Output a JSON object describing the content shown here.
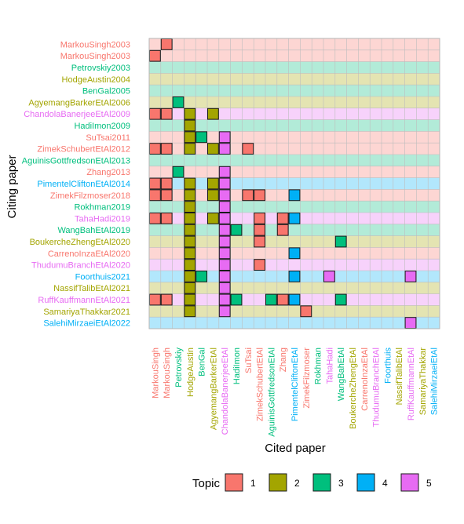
{
  "chart_data": {
    "type": "heatmap",
    "xlabel": "Cited paper",
    "ylabel": "Citing paper",
    "legend": {
      "title": "Topic",
      "position": "bottom",
      "labels": [
        "1",
        "2",
        "3",
        "4",
        "5"
      ]
    },
    "topic_colors": {
      "1": "#F8766D",
      "2": "#A3A500",
      "3": "#00BF7D",
      "4": "#00B0F6",
      "5": "#E76BF3"
    },
    "topic_bg_colors": {
      "1": "#FDD6D3",
      "2": "#E4E4B2",
      "3": "#B2EBD8",
      "4": "#B2E7FC",
      "5": "#F7D2FB"
    },
    "rows": [
      {
        "label": "MarkouSingh2003",
        "topic": 1
      },
      {
        "label": "MarkouSingh2003",
        "topic": 1
      },
      {
        "label": "Petrovskiy2003",
        "topic": 3
      },
      {
        "label": "HodgeAustin2004",
        "topic": 2
      },
      {
        "label": "BenGal2005",
        "topic": 3
      },
      {
        "label": "AgyemangBarkerEtAl2006",
        "topic": 2
      },
      {
        "label": "ChandolaBanerjeeEtAl2009",
        "topic": 5
      },
      {
        "label": "HadiImon2009",
        "topic": 3
      },
      {
        "label": "SuTsai2011",
        "topic": 1
      },
      {
        "label": "ZimekSchubertEtAl2012",
        "topic": 1
      },
      {
        "label": "AguinisGottfredsonEtAl2013",
        "topic": 3
      },
      {
        "label": "Zhang2013",
        "topic": 1
      },
      {
        "label": "PimentelCliftonEtAl2014",
        "topic": 4
      },
      {
        "label": "ZimekFilzmoser2018",
        "topic": 1
      },
      {
        "label": "Rokhman2019",
        "topic": 3
      },
      {
        "label": "TahaHadi2019",
        "topic": 5
      },
      {
        "label": "WangBahEtAl2019",
        "topic": 3
      },
      {
        "label": "BoukercheZhengEtAl2020",
        "topic": 2
      },
      {
        "label": "CarrenoInzaEtAl2020",
        "topic": 1
      },
      {
        "label": "ThudumuBranchEtAl2020",
        "topic": 5
      },
      {
        "label": "Foorthuis2021",
        "topic": 4
      },
      {
        "label": "NassifTalibEtAl2021",
        "topic": 2
      },
      {
        "label": "RuffKauffmannEtAl2021",
        "topic": 5
      },
      {
        "label": "SamariyaThakkar2021",
        "topic": 2
      },
      {
        "label": "SalehiMirzaeiEtAl2022",
        "topic": 4
      }
    ],
    "columns": [
      {
        "label": "MarkouSingh",
        "topic": 1
      },
      {
        "label": "MarkouSingh",
        "topic": 1
      },
      {
        "label": "Petrovskiy",
        "topic": 3
      },
      {
        "label": "HodgeAustin",
        "topic": 2
      },
      {
        "label": "BenGal",
        "topic": 3
      },
      {
        "label": "AgyemangBarkerEtAl",
        "topic": 2
      },
      {
        "label": "ChandolaBanerjeeEtAl",
        "topic": 5
      },
      {
        "label": "HadiImon",
        "topic": 3
      },
      {
        "label": "SuTsai",
        "topic": 1
      },
      {
        "label": "ZimekSchubertEtAl",
        "topic": 1
      },
      {
        "label": "AguinisGottfredsonEtAl",
        "topic": 3
      },
      {
        "label": "Zhang",
        "topic": 1
      },
      {
        "label": "PimentelCliftonEtAl",
        "topic": 4
      },
      {
        "label": "ZimekFilzmoser",
        "topic": 1
      },
      {
        "label": "Rokhman",
        "topic": 3
      },
      {
        "label": "TahaHadi",
        "topic": 5
      },
      {
        "label": "WangBahEtAl",
        "topic": 3
      },
      {
        "label": "BoukercheZhengEtAl",
        "topic": 2
      },
      {
        "label": "CarrenoInzaEtAl",
        "topic": 1
      },
      {
        "label": "ThudumuBranchEtAl",
        "topic": 5
      },
      {
        "label": "Foorthuis",
        "topic": 4
      },
      {
        "label": "NassifTalibEtAl",
        "topic": 2
      },
      {
        "label": "RuffKauffmannEtAl",
        "topic": 5
      },
      {
        "label": "SamariyaThakkar",
        "topic": 2
      },
      {
        "label": "SalehiMirzaeiEtAl",
        "topic": 4
      }
    ],
    "citations": [
      {
        "row": 0,
        "col": 1,
        "topic": 1
      },
      {
        "row": 1,
        "col": 0,
        "topic": 1
      },
      {
        "row": 5,
        "col": 2,
        "topic": 3
      },
      {
        "row": 6,
        "col": 0,
        "topic": 1
      },
      {
        "row": 6,
        "col": 1,
        "topic": 1
      },
      {
        "row": 6,
        "col": 3,
        "topic": 2
      },
      {
        "row": 6,
        "col": 5,
        "topic": 2
      },
      {
        "row": 7,
        "col": 3,
        "topic": 2
      },
      {
        "row": 8,
        "col": 3,
        "topic": 2
      },
      {
        "row": 8,
        "col": 4,
        "topic": 3
      },
      {
        "row": 8,
        "col": 6,
        "topic": 5
      },
      {
        "row": 9,
        "col": 0,
        "topic": 1
      },
      {
        "row": 9,
        "col": 1,
        "topic": 1
      },
      {
        "row": 9,
        "col": 3,
        "topic": 2
      },
      {
        "row": 9,
        "col": 5,
        "topic": 2
      },
      {
        "row": 9,
        "col": 6,
        "topic": 5
      },
      {
        "row": 9,
        "col": 8,
        "topic": 1
      },
      {
        "row": 11,
        "col": 2,
        "topic": 3
      },
      {
        "row": 11,
        "col": 6,
        "topic": 5
      },
      {
        "row": 12,
        "col": 0,
        "topic": 1
      },
      {
        "row": 12,
        "col": 1,
        "topic": 1
      },
      {
        "row": 12,
        "col": 3,
        "topic": 2
      },
      {
        "row": 12,
        "col": 5,
        "topic": 2
      },
      {
        "row": 12,
        "col": 6,
        "topic": 5
      },
      {
        "row": 13,
        "col": 0,
        "topic": 1
      },
      {
        "row": 13,
        "col": 1,
        "topic": 1
      },
      {
        "row": 13,
        "col": 3,
        "topic": 2
      },
      {
        "row": 13,
        "col": 5,
        "topic": 2
      },
      {
        "row": 13,
        "col": 6,
        "topic": 5
      },
      {
        "row": 13,
        "col": 8,
        "topic": 1
      },
      {
        "row": 13,
        "col": 9,
        "topic": 1
      },
      {
        "row": 13,
        "col": 12,
        "topic": 4
      },
      {
        "row": 14,
        "col": 3,
        "topic": 2
      },
      {
        "row": 14,
        "col": 6,
        "topic": 5
      },
      {
        "row": 15,
        "col": 0,
        "topic": 1
      },
      {
        "row": 15,
        "col": 1,
        "topic": 1
      },
      {
        "row": 15,
        "col": 3,
        "topic": 2
      },
      {
        "row": 15,
        "col": 5,
        "topic": 2
      },
      {
        "row": 15,
        "col": 6,
        "topic": 5
      },
      {
        "row": 15,
        "col": 9,
        "topic": 1
      },
      {
        "row": 15,
        "col": 11,
        "topic": 1
      },
      {
        "row": 15,
        "col": 12,
        "topic": 4
      },
      {
        "row": 16,
        "col": 3,
        "topic": 2
      },
      {
        "row": 16,
        "col": 6,
        "topic": 5
      },
      {
        "row": 16,
        "col": 7,
        "topic": 3
      },
      {
        "row": 16,
        "col": 9,
        "topic": 1
      },
      {
        "row": 16,
        "col": 11,
        "topic": 1
      },
      {
        "row": 17,
        "col": 3,
        "topic": 2
      },
      {
        "row": 17,
        "col": 6,
        "topic": 5
      },
      {
        "row": 17,
        "col": 9,
        "topic": 1
      },
      {
        "row": 17,
        "col": 16,
        "topic": 3
      },
      {
        "row": 18,
        "col": 3,
        "topic": 2
      },
      {
        "row": 18,
        "col": 6,
        "topic": 5
      },
      {
        "row": 18,
        "col": 12,
        "topic": 4
      },
      {
        "row": 19,
        "col": 3,
        "topic": 2
      },
      {
        "row": 19,
        "col": 6,
        "topic": 5
      },
      {
        "row": 19,
        "col": 9,
        "topic": 1
      },
      {
        "row": 20,
        "col": 3,
        "topic": 2
      },
      {
        "row": 20,
        "col": 4,
        "topic": 3
      },
      {
        "row": 20,
        "col": 6,
        "topic": 5
      },
      {
        "row": 20,
        "col": 12,
        "topic": 4
      },
      {
        "row": 20,
        "col": 15,
        "topic": 5
      },
      {
        "row": 20,
        "col": 22,
        "topic": 5
      },
      {
        "row": 21,
        "col": 3,
        "topic": 2
      },
      {
        "row": 21,
        "col": 6,
        "topic": 5
      },
      {
        "row": 22,
        "col": 0,
        "topic": 1
      },
      {
        "row": 22,
        "col": 1,
        "topic": 1
      },
      {
        "row": 22,
        "col": 3,
        "topic": 2
      },
      {
        "row": 22,
        "col": 6,
        "topic": 5
      },
      {
        "row": 22,
        "col": 7,
        "topic": 3
      },
      {
        "row": 22,
        "col": 10,
        "topic": 3
      },
      {
        "row": 22,
        "col": 11,
        "topic": 1
      },
      {
        "row": 22,
        "col": 12,
        "topic": 4
      },
      {
        "row": 22,
        "col": 16,
        "topic": 3
      },
      {
        "row": 23,
        "col": 3,
        "topic": 2
      },
      {
        "row": 23,
        "col": 6,
        "topic": 5
      },
      {
        "row": 23,
        "col": 13,
        "topic": 1
      },
      {
        "row": 24,
        "col": 22,
        "topic": 5
      }
    ]
  }
}
